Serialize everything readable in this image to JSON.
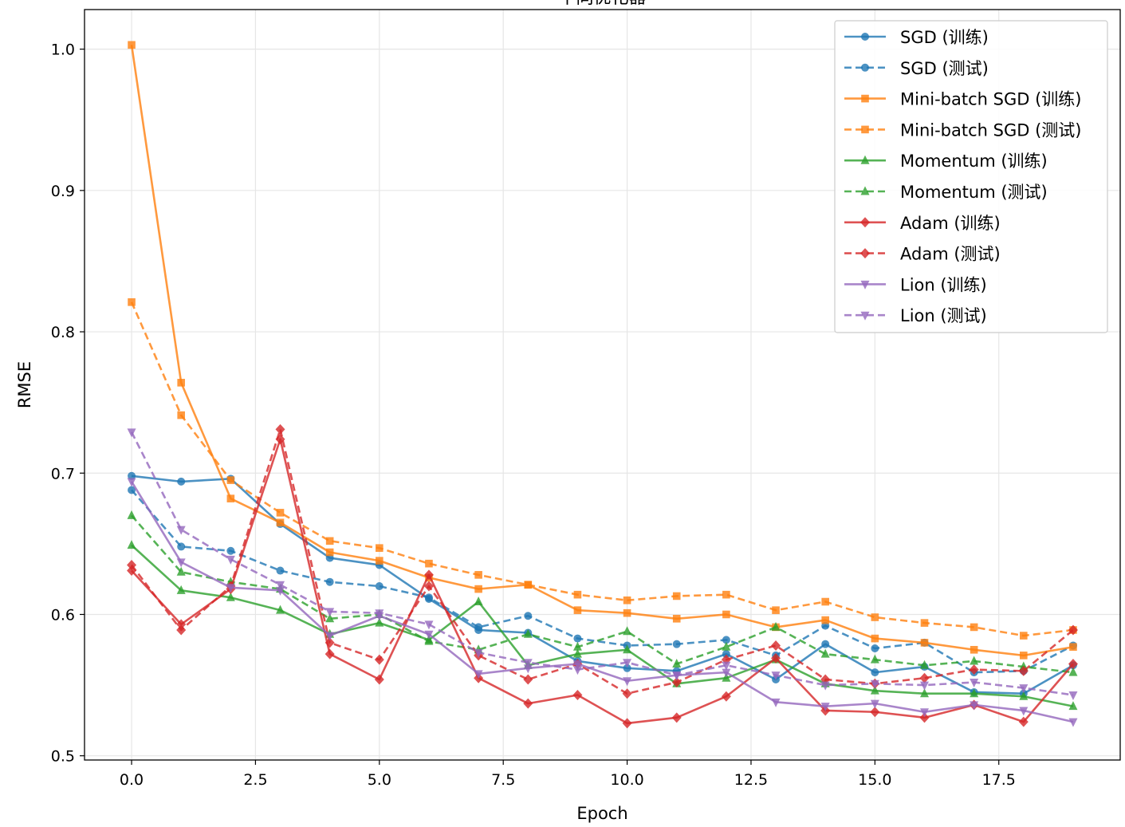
{
  "chart_data": {
    "type": "line",
    "title": "不同优化器",
    "xlabel": "Epoch",
    "ylabel": "RMSE",
    "xlim": [
      -0.95,
      19.95
    ],
    "ylim": [
      0.497,
      1.028
    ],
    "grid": true,
    "legend_position": "top-right",
    "x": [
      0,
      1,
      2,
      3,
      4,
      5,
      6,
      7,
      8,
      9,
      10,
      11,
      12,
      13,
      14,
      15,
      16,
      17,
      18,
      19
    ],
    "xticks": [
      0.0,
      2.5,
      5.0,
      7.5,
      10.0,
      12.5,
      15.0,
      17.5
    ],
    "xtick_labels": [
      "0.0",
      "2.5",
      "5.0",
      "7.5",
      "10.0",
      "12.5",
      "15.0",
      "17.5"
    ],
    "yticks": [
      0.5,
      0.6,
      0.7,
      0.8,
      0.9,
      1.0
    ],
    "ytick_labels": [
      "0.5",
      "0.6",
      "0.7",
      "0.8",
      "0.9",
      "1.0"
    ],
    "series": [
      {
        "name": "SGD (训练)",
        "color": "#1f77b4",
        "dash": "solid",
        "marker": "circle",
        "values": [
          0.698,
          0.694,
          0.696,
          0.664,
          0.64,
          0.635,
          0.611,
          0.589,
          0.587,
          0.567,
          0.562,
          0.56,
          0.572,
          0.554,
          0.579,
          0.559,
          0.563,
          0.545,
          0.544,
          0.564
        ]
      },
      {
        "name": "SGD (测试)",
        "color": "#1f77b4",
        "dash": "dashed",
        "marker": "circle",
        "values": [
          0.688,
          0.648,
          0.645,
          0.631,
          0.623,
          0.62,
          0.612,
          0.591,
          0.599,
          0.583,
          0.578,
          0.579,
          0.582,
          0.571,
          0.592,
          0.576,
          0.58,
          0.559,
          0.56,
          0.578
        ]
      },
      {
        "name": "Mini-batch SGD (训练)",
        "color": "#ff7f0e",
        "dash": "solid",
        "marker": "square",
        "values": [
          1.003,
          0.764,
          0.682,
          0.665,
          0.644,
          0.638,
          0.626,
          0.618,
          0.621,
          0.603,
          0.601,
          0.597,
          0.6,
          0.591,
          0.596,
          0.583,
          0.58,
          0.575,
          0.571,
          0.577
        ]
      },
      {
        "name": "Mini-batch SGD (测试)",
        "color": "#ff7f0e",
        "dash": "dashed",
        "marker": "square",
        "values": [
          0.821,
          0.741,
          0.695,
          0.672,
          0.652,
          0.647,
          0.636,
          0.628,
          0.621,
          0.614,
          0.61,
          0.613,
          0.614,
          0.603,
          0.609,
          0.598,
          0.594,
          0.591,
          0.585,
          0.589
        ]
      },
      {
        "name": "Momentum (训练)",
        "color": "#2ca02c",
        "dash": "solid",
        "marker": "triangle-up",
        "values": [
          0.649,
          0.617,
          0.612,
          0.603,
          0.586,
          0.594,
          0.582,
          0.609,
          0.564,
          0.572,
          0.575,
          0.551,
          0.555,
          0.568,
          0.551,
          0.546,
          0.544,
          0.544,
          0.542,
          0.535
        ]
      },
      {
        "name": "Momentum (测试)",
        "color": "#2ca02c",
        "dash": "dashed",
        "marker": "triangle-up",
        "values": [
          0.67,
          0.63,
          0.623,
          0.618,
          0.597,
          0.6,
          0.581,
          0.575,
          0.586,
          0.577,
          0.588,
          0.565,
          0.577,
          0.591,
          0.572,
          0.568,
          0.564,
          0.567,
          0.563,
          0.559
        ]
      },
      {
        "name": "Adam (训练)",
        "color": "#d62728",
        "dash": "solid",
        "marker": "diamond",
        "values": [
          0.631,
          0.593,
          0.618,
          0.724,
          0.572,
          0.554,
          0.628,
          0.555,
          0.537,
          0.543,
          0.523,
          0.527,
          0.542,
          0.569,
          0.532,
          0.531,
          0.527,
          0.536,
          0.524,
          0.565
        ]
      },
      {
        "name": "Adam (测试)",
        "color": "#d62728",
        "dash": "dashed",
        "marker": "diamond",
        "values": [
          0.635,
          0.589,
          0.62,
          0.731,
          0.58,
          0.568,
          0.62,
          0.571,
          0.554,
          0.565,
          0.544,
          0.552,
          0.568,
          0.578,
          0.554,
          0.551,
          0.555,
          0.561,
          0.56,
          0.589
        ]
      },
      {
        "name": "Lion (训练)",
        "color": "#9467bd",
        "dash": "solid",
        "marker": "triangle-down",
        "values": [
          0.694,
          0.637,
          0.619,
          0.617,
          0.585,
          0.599,
          0.586,
          0.558,
          0.562,
          0.565,
          0.553,
          0.557,
          0.559,
          0.538,
          0.535,
          0.537,
          0.531,
          0.536,
          0.532,
          0.524
        ]
      },
      {
        "name": "Lion (测试)",
        "color": "#9467bd",
        "dash": "dashed",
        "marker": "triangle-down",
        "values": [
          0.729,
          0.66,
          0.639,
          0.621,
          0.602,
          0.601,
          0.593,
          0.573,
          0.566,
          0.561,
          0.566,
          0.557,
          0.564,
          0.557,
          0.55,
          0.551,
          0.55,
          0.552,
          0.548,
          0.543
        ]
      }
    ]
  }
}
